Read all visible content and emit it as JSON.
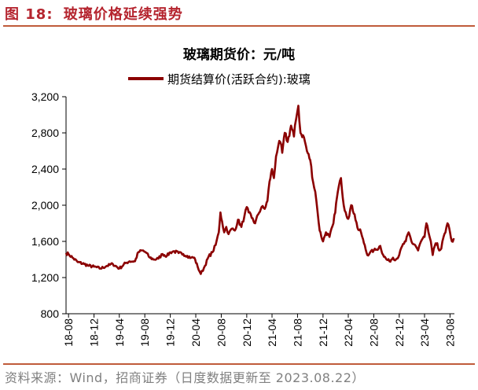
{
  "figure": {
    "label": "图 18:",
    "title": "玻璃价格延续强势",
    "source": "资料来源：Wind，招商证券（日度数据更新至 2023.08.22）"
  },
  "colors": {
    "accent": "#b5252f",
    "rule": "#c05b3a",
    "series": "#8b0000"
  },
  "chart_data": {
    "type": "line",
    "title": "玻璃期货价：元/吨",
    "xlabel": "",
    "ylabel": "",
    "ylim": [
      800,
      3200
    ],
    "yticks": [
      800,
      1200,
      1600,
      2000,
      2400,
      2800,
      3200
    ],
    "ytick_labels": [
      "800",
      "1,200",
      "1,600",
      "2,000",
      "2,400",
      "2,800",
      "3,200"
    ],
    "xlim": [
      "2018-07-20",
      "2023-08-22"
    ],
    "xticks": [
      "2018-08",
      "2018-12",
      "2019-04",
      "2019-08",
      "2019-12",
      "2020-04",
      "2020-08",
      "2020-12",
      "2021-04",
      "2021-08",
      "2021-12",
      "2022-04",
      "2022-08",
      "2022-12",
      "2023-04",
      "2023-08"
    ],
    "xtick_labels": [
      "18-08",
      "18-12",
      "19-04",
      "19-08",
      "19-12",
      "20-04",
      "20-08",
      "20-12",
      "21-04",
      "21-08",
      "21-12",
      "22-04",
      "22-08",
      "22-12",
      "23-04",
      "23-08"
    ],
    "grid": false,
    "legend_position": "top",
    "series": [
      {
        "name": "期货结算价(活跃合约):玻璃",
        "x": [
          "2018-07-20",
          "2018-08-01",
          "2018-08-20",
          "2018-09-15",
          "2018-10-15",
          "2018-11-05",
          "2018-12-01",
          "2019-01-01",
          "2019-02-01",
          "2019-03-01",
          "2019-04-01",
          "2019-05-01",
          "2019-05-20",
          "2019-06-15",
          "2019-07-01",
          "2019-07-20",
          "2019-08-05",
          "2019-08-25",
          "2019-09-15",
          "2019-10-05",
          "2019-10-25",
          "2019-11-15",
          "2019-12-01",
          "2019-12-20",
          "2020-01-10",
          "2020-02-01",
          "2020-02-20",
          "2020-03-10",
          "2020-03-25",
          "2020-04-10",
          "2020-04-25",
          "2020-05-15",
          "2020-06-01",
          "2020-06-20",
          "2020-07-05",
          "2020-07-20",
          "2020-07-28",
          "2020-08-05",
          "2020-08-15",
          "2020-08-25",
          "2020-09-05",
          "2020-09-20",
          "2020-10-05",
          "2020-10-20",
          "2020-11-05",
          "2020-11-20",
          "2020-12-01",
          "2020-12-10",
          "2020-12-25",
          "2021-01-10",
          "2021-01-25",
          "2021-02-10",
          "2021-02-25",
          "2021-03-10",
          "2021-03-20",
          "2021-04-01",
          "2021-04-10",
          "2021-04-20",
          "2021-05-01",
          "2021-05-10",
          "2021-05-20",
          "2021-06-01",
          "2021-06-15",
          "2021-07-01",
          "2021-07-15",
          "2021-07-25",
          "2021-08-05",
          "2021-08-15",
          "2021-09-01",
          "2021-09-15",
          "2021-10-01",
          "2021-10-15",
          "2021-10-25",
          "2021-11-05",
          "2021-11-15",
          "2021-12-01",
          "2021-12-15",
          "2022-01-01",
          "2022-01-20",
          "2022-02-10",
          "2022-02-25",
          "2022-03-10",
          "2022-03-20",
          "2022-04-01",
          "2022-04-15",
          "2022-05-01",
          "2022-05-15",
          "2022-06-01",
          "2022-06-15",
          "2022-07-01",
          "2022-07-15",
          "2022-08-01",
          "2022-08-15",
          "2022-09-01",
          "2022-09-15",
          "2022-10-01",
          "2022-10-15",
          "2022-11-01",
          "2022-11-15",
          "2022-12-01",
          "2022-12-15",
          "2023-01-01",
          "2023-01-15",
          "2023-02-01",
          "2023-02-15",
          "2023-03-01",
          "2023-03-15",
          "2023-04-01",
          "2023-04-10",
          "2023-04-20",
          "2023-05-01",
          "2023-05-10",
          "2023-05-20",
          "2023-06-01",
          "2023-06-10",
          "2023-06-20",
          "2023-07-01",
          "2023-07-10",
          "2023-07-20",
          "2023-08-01",
          "2023-08-10",
          "2023-08-22"
        ],
        "y": [
          1470,
          1460,
          1420,
          1370,
          1350,
          1330,
          1320,
          1300,
          1330,
          1350,
          1300,
          1360,
          1380,
          1380,
          1480,
          1500,
          1480,
          1420,
          1400,
          1410,
          1460,
          1440,
          1480,
          1490,
          1470,
          1460,
          1440,
          1420,
          1420,
          1320,
          1240,
          1330,
          1430,
          1480,
          1560,
          1700,
          1920,
          1820,
          1700,
          1760,
          1680,
          1740,
          1720,
          1840,
          1760,
          1880,
          1980,
          1920,
          1860,
          1800,
          1900,
          1980,
          1960,
          2050,
          2260,
          2400,
          2300,
          2540,
          2660,
          2700,
          2580,
          2800,
          2700,
          2880,
          2760,
          2950,
          3100,
          2800,
          2750,
          2600,
          2500,
          2250,
          2150,
          1930,
          1720,
          1600,
          1700,
          1650,
          1800,
          2150,
          2300,
          2000,
          1920,
          1850,
          2000,
          1900,
          1750,
          1700,
          1580,
          1450,
          1480,
          1500,
          1510,
          1550,
          1450,
          1400,
          1380,
          1420,
          1400,
          1450,
          1550,
          1600,
          1700,
          1580,
          1560,
          1500,
          1600,
          1650,
          1800,
          1700,
          1600,
          1450,
          1550,
          1580,
          1500,
          1520,
          1650,
          1700,
          1800,
          1700,
          1600,
          1620
        ]
      }
    ]
  }
}
